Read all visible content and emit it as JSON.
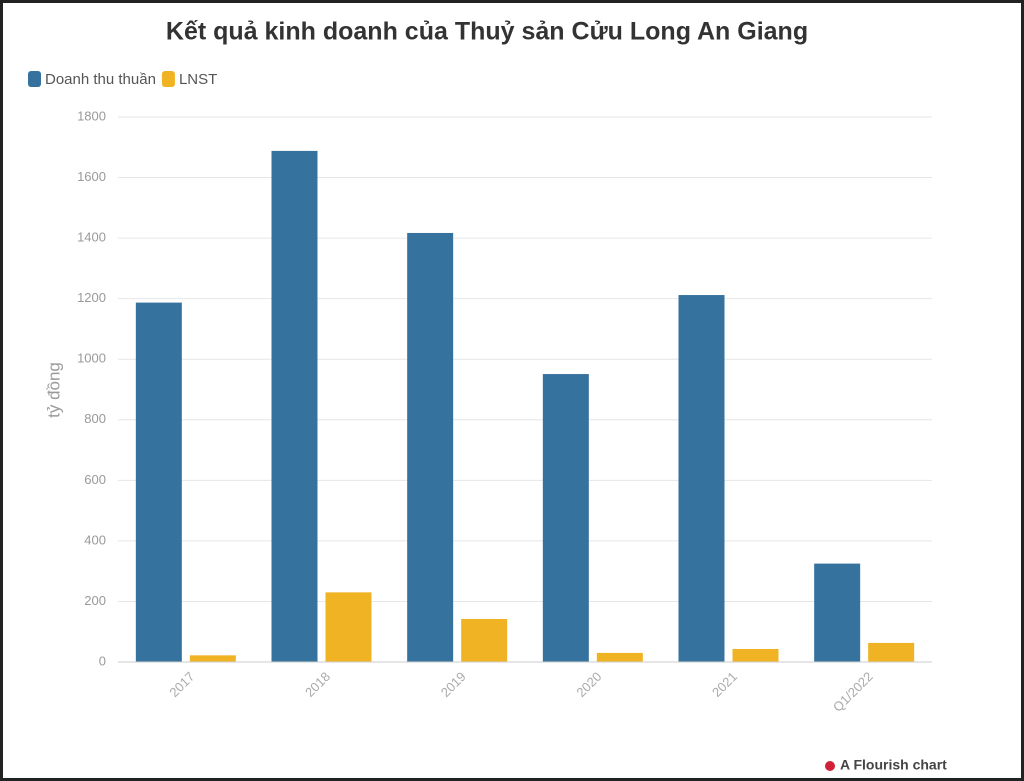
{
  "chart_data": {
    "type": "bar",
    "title": "Kết quả kinh doanh của Thuỷ sản Cửu Long An Giang",
    "y_label": "tỷ đồng",
    "credit": "A Flourish chart",
    "categories": [
      "2017",
      "2018",
      "2019",
      "2020",
      "2021",
      "Q1/2022"
    ],
    "series": [
      {
        "name": "Doanh thu thuần",
        "color": "#35739e",
        "values": [
          1187,
          1688,
          1417,
          951,
          1212,
          325
        ]
      },
      {
        "name": "LNST",
        "color": "#f0b323",
        "values": [
          22,
          230,
          142,
          30,
          43,
          63
        ]
      }
    ],
    "ylim": [
      0,
      1800
    ],
    "yticks": [
      0,
      200,
      400,
      600,
      800,
      1000,
      1200,
      1400,
      1600,
      1800
    ],
    "grid": true,
    "legend": "top-left"
  }
}
